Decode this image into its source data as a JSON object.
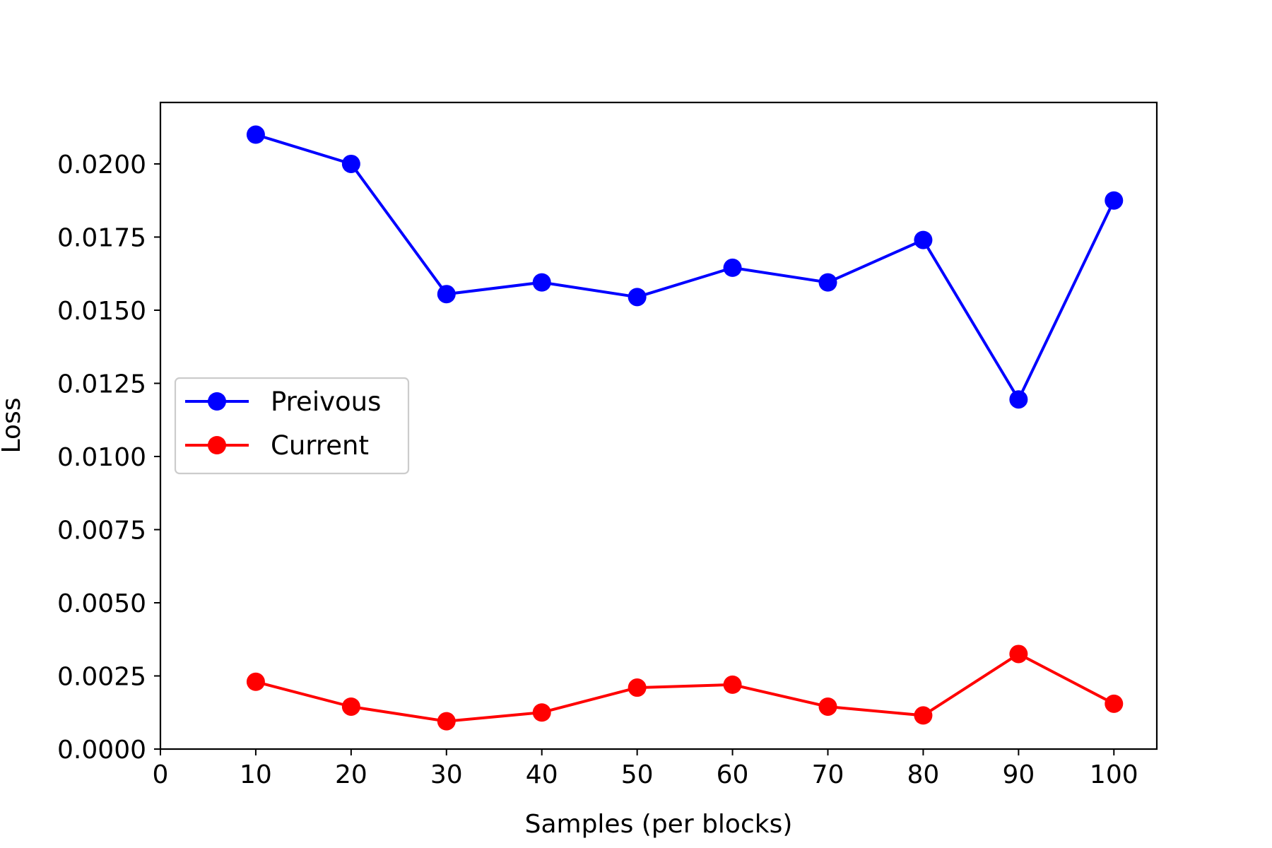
{
  "chart_data": {
    "type": "line",
    "title": "",
    "xlabel": "Samples (per blocks)",
    "ylabel": "Loss",
    "xlim": [
      0,
      104.5
    ],
    "ylim": [
      0,
      0.0221
    ],
    "xticks": [
      0,
      10,
      20,
      30,
      40,
      50,
      60,
      70,
      80,
      90,
      100
    ],
    "xtick_labels": [
      "0",
      "10",
      "20",
      "30",
      "40",
      "50",
      "60",
      "70",
      "80",
      "90",
      "100"
    ],
    "yticks": [
      0,
      0.0025,
      0.005,
      0.0075,
      0.01,
      0.0125,
      0.015,
      0.0175,
      0.02
    ],
    "ytick_labels": [
      "0.0000",
      "0.0025",
      "0.0050",
      "0.0075",
      "0.0100",
      "0.0125",
      "0.0150",
      "0.0175",
      "0.0200"
    ],
    "grid": false,
    "legend_position": "center-left",
    "x": [
      10,
      20,
      30,
      40,
      50,
      60,
      70,
      80,
      90,
      100
    ],
    "series": [
      {
        "name": "Preivous",
        "color": "#0000ff",
        "marker": "circle",
        "values": [
          0.021,
          0.02,
          0.01555,
          0.01595,
          0.01545,
          0.01645,
          0.01595,
          0.0174,
          0.01195,
          0.01875
        ]
      },
      {
        "name": "Current",
        "color": "#ff0000",
        "marker": "circle",
        "values": [
          0.0023,
          0.00145,
          0.00095,
          0.00125,
          0.0021,
          0.0022,
          0.00145,
          0.00115,
          0.00325,
          0.00155
        ]
      }
    ]
  }
}
